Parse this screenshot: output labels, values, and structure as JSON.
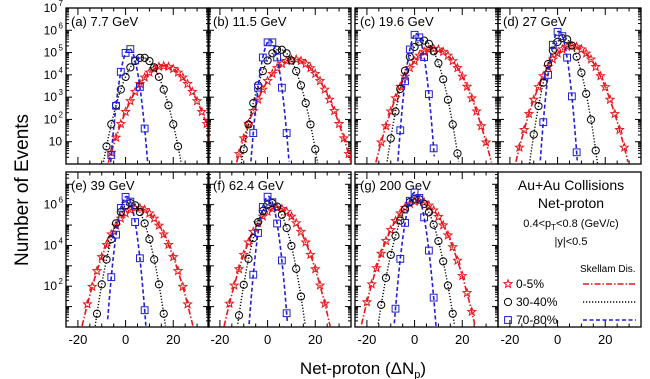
{
  "figure": {
    "ylabel": "Number of Events",
    "xlabel": "Net-proton (ΔN",
    "xlabel_sub": "p",
    "xlabel_close": ")",
    "legend": {
      "title_line1": "Au+Au Collisions",
      "title_line2": "Net-proton",
      "cut_pt": "0.4<p",
      "cut_pt_sub": "T",
      "cut_pt_rest": "<0.8 (GeV/c)",
      "cut_y": "|y|<0.5",
      "skellam_label": "Skellam Dis.",
      "entries": [
        {
          "label": "0-5%",
          "marker": "star",
          "color": "#e8161b",
          "line": "dashdot"
        },
        {
          "label": "30-40%",
          "marker": "circle",
          "color": "#000000",
          "line": "dotted"
        },
        {
          "label": "70-80%",
          "marker": "square",
          "color": "#1f1fd6",
          "line": "dashed"
        }
      ]
    }
  },
  "chart_data": {
    "type": "scatter",
    "xlim": [
      -25,
      35
    ],
    "xticks": [
      -20,
      0,
      20
    ],
    "xtick_labels": [
      "-20",
      "0",
      "20"
    ],
    "ylog": true,
    "yticks_top": [
      10,
      100,
      1000,
      10000,
      100000,
      1000000,
      10000000
    ],
    "ytick_labels_top": [
      "10",
      "10",
      "10",
      "10",
      "10",
      "10",
      "10"
    ],
    "ytick_sup_top": [
      "",
      "2",
      "3",
      "4",
      "5",
      "6",
      "7"
    ],
    "yticks_bottom": [
      100,
      10000,
      1000000
    ],
    "ytick_labels_bottom": [
      "10",
      "10",
      "10"
    ],
    "ytick_sup_bottom": [
      "2",
      "4",
      "6"
    ],
    "centralities": [
      {
        "name": "0-5%",
        "color": "#e8161b",
        "marker": "star",
        "line": "dashdot"
      },
      {
        "name": "30-40%",
        "color": "#000000",
        "marker": "circle",
        "line": "dotted"
      },
      {
        "name": "70-80%",
        "color": "#1f1fd6",
        "marker": "square",
        "line": "dashed"
      }
    ],
    "panels": [
      {
        "label": "(a) 7.7 GeV",
        "row": "top",
        "ylim": [
          1,
          10000000
        ],
        "series": [
          {
            "mean": 16,
            "sigma": 5.2,
            "peak": 25000
          },
          {
            "mean": 7,
            "sigma": 3.5,
            "peak": 60000
          },
          {
            "mean": 1.5,
            "sigma": 1.6,
            "peak": 150000
          }
        ]
      },
      {
        "label": "(b) 11.5 GeV",
        "row": "top",
        "ylim": [
          1,
          10000000
        ],
        "series": [
          {
            "mean": 11,
            "sigma": 5.2,
            "peak": 50000
          },
          {
            "mean": 5,
            "sigma": 3.3,
            "peak": 140000
          },
          {
            "mean": 1,
            "sigma": 1.6,
            "peak": 350000
          }
        ]
      },
      {
        "label": "(c) 19.6 GeV",
        "row": "top",
        "ylim": [
          1,
          10000000
        ],
        "series": [
          {
            "mean": 8,
            "sigma": 5.0,
            "peak": 150000
          },
          {
            "mean": 3.5,
            "sigma": 3.0,
            "peak": 350000
          },
          {
            "mean": 0.7,
            "sigma": 1.5,
            "peak": 700000
          }
        ]
      },
      {
        "label": "(d) 27 GeV",
        "row": "top",
        "ylim": [
          1,
          10000000
        ],
        "series": [
          {
            "mean": 6,
            "sigma": 4.8,
            "peak": 200000
          },
          {
            "mean": 2.5,
            "sigma": 2.8,
            "peak": 450000
          },
          {
            "mean": 0.5,
            "sigma": 1.5,
            "peak": 900000
          }
        ]
      },
      {
        "label": "(e) 39 GeV",
        "row": "bottom",
        "ylim": [
          1,
          40000000
        ],
        "series": [
          {
            "mean": 5,
            "sigma": 4.5,
            "peak": 700000
          },
          {
            "mean": 2,
            "sigma": 2.8,
            "peak": 1200000
          },
          {
            "mean": 0.4,
            "sigma": 1.5,
            "peak": 2500000
          }
        ]
      },
      {
        "label": "(f) 62.4 GeV",
        "row": "bottom",
        "ylim": [
          1,
          40000000
        ],
        "series": [
          {
            "mean": 4,
            "sigma": 4.3,
            "peak": 700000
          },
          {
            "mean": 1.6,
            "sigma": 2.7,
            "peak": 1200000
          },
          {
            "mean": 0.3,
            "sigma": 1.5,
            "peak": 2500000
          }
        ]
      },
      {
        "label": "(g) 200 GeV",
        "row": "bottom",
        "ylim": [
          1,
          40000000
        ],
        "series": [
          {
            "mean": 1.5,
            "sigma": 4.5,
            "peak": 1500000
          },
          {
            "mean": 0.7,
            "sigma": 3.0,
            "peak": 2000000
          },
          {
            "mean": 0.2,
            "sigma": 1.6,
            "peak": 4000000
          }
        ]
      }
    ]
  }
}
